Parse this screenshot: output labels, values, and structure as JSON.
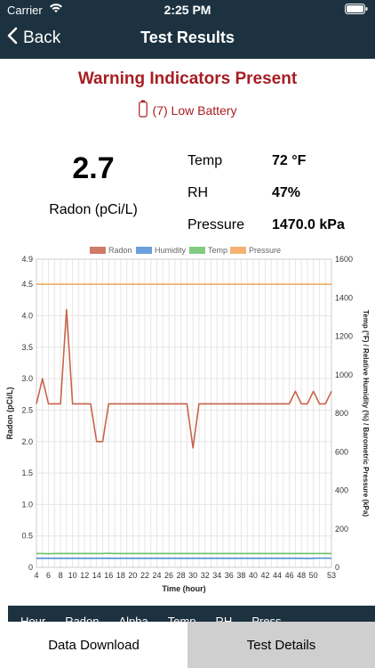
{
  "status": {
    "carrier": "Carrier",
    "time": "2:25 PM"
  },
  "nav": {
    "back_label": "Back",
    "title": "Test Results"
  },
  "warning": {
    "title": "Warning Indicators Present",
    "item": "(7) Low Battery"
  },
  "radon": {
    "value": "2.7",
    "label": "Radon (pCi/L)"
  },
  "metrics": [
    {
      "label": "Temp",
      "value": "72 °F"
    },
    {
      "label": "RH",
      "value": "47%"
    },
    {
      "label": "Pressure",
      "value": "1470.0 kPa"
    }
  ],
  "table_headers": [
    "Hour",
    "Radon",
    "Alpha",
    "Temp",
    "RH",
    "Press"
  ],
  "tabs": {
    "data_download": "Data Download",
    "test_details": "Test Details"
  },
  "colors": {
    "radon": "#c8644b",
    "humidity": "#4e91d6",
    "temp": "#6cc26b",
    "pressure": "#f2a65a",
    "nav": "#1d3240",
    "warning": "#a61e23"
  },
  "chart_data": {
    "type": "line",
    "xlabel": "Time (hour)",
    "ylabel": "Radon (pCi/L)",
    "y2label": "Temp (°F) / Relative Humidity (%) / Barometric Pressure (kPa)",
    "xlim": [
      4,
      53
    ],
    "ylim": [
      0,
      4.9
    ],
    "y2lim": [
      0,
      1600
    ],
    "x_ticks": [
      4,
      6,
      8,
      10,
      12,
      14,
      16,
      18,
      20,
      22,
      24,
      26,
      28,
      30,
      32,
      34,
      36,
      38,
      40,
      42,
      44,
      46,
      48,
      50,
      53
    ],
    "y_ticks": [
      0,
      0.5,
      1.0,
      1.5,
      2.0,
      2.5,
      3.0,
      3.5,
      4.0,
      4.5,
      4.9
    ],
    "y2_ticks": [
      0,
      200,
      400,
      600,
      800,
      1000,
      1200,
      1400,
      1600
    ],
    "legend": [
      "Radon",
      "Humidity",
      "Temp",
      "Pressure"
    ],
    "legend_position": "top",
    "grid": true,
    "x": [
      4,
      5,
      6,
      7,
      8,
      9,
      10,
      11,
      12,
      13,
      14,
      15,
      16,
      17,
      18,
      19,
      20,
      21,
      22,
      23,
      24,
      25,
      26,
      27,
      28,
      29,
      30,
      31,
      32,
      33,
      34,
      35,
      36,
      37,
      38,
      39,
      40,
      41,
      42,
      43,
      44,
      45,
      46,
      47,
      48,
      49,
      50,
      51,
      52,
      53
    ],
    "series": [
      {
        "name": "Radon",
        "axis": "left",
        "values": [
          2.6,
          3.0,
          2.6,
          2.6,
          2.6,
          4.1,
          2.6,
          2.6,
          2.6,
          2.6,
          2.0,
          2.0,
          2.6,
          2.6,
          2.6,
          2.6,
          2.6,
          2.6,
          2.6,
          2.6,
          2.6,
          2.6,
          2.6,
          2.6,
          2.6,
          2.6,
          1.9,
          2.6,
          2.6,
          2.6,
          2.6,
          2.6,
          2.6,
          2.6,
          2.6,
          2.6,
          2.6,
          2.6,
          2.6,
          2.6,
          2.6,
          2.6,
          2.6,
          2.8,
          2.6,
          2.6,
          2.8,
          2.6,
          2.6,
          2.8
        ]
      },
      {
        "name": "Humidity",
        "axis": "right",
        "values": [
          47,
          47,
          47,
          47,
          47,
          47,
          47,
          47,
          47,
          47,
          47,
          47,
          47,
          47,
          47,
          47,
          47,
          47,
          47,
          47,
          47,
          47,
          47,
          47,
          47,
          47,
          47,
          47,
          47,
          47,
          47,
          47,
          47,
          47,
          47,
          47,
          47,
          47,
          47,
          47,
          47,
          47,
          47,
          47,
          47,
          46,
          47,
          48,
          48,
          47
        ]
      },
      {
        "name": "Temp",
        "axis": "right",
        "values": [
          72,
          72,
          71,
          72,
          72,
          72,
          72,
          72,
          72,
          72,
          72,
          72,
          73,
          72,
          72,
          72,
          72,
          72,
          72,
          72,
          72,
          72,
          72,
          72,
          72,
          72,
          72,
          72,
          72,
          72,
          72,
          72,
          72,
          72,
          72,
          72,
          72,
          72,
          72,
          72,
          72,
          72,
          72,
          72,
          72,
          72,
          72,
          72,
          72,
          72
        ]
      },
      {
        "name": "Pressure",
        "axis": "right",
        "values": [
          1470,
          1470,
          1470,
          1470,
          1470,
          1470,
          1470,
          1470,
          1470,
          1470,
          1470,
          1470,
          1470,
          1470,
          1470,
          1470,
          1470,
          1470,
          1470,
          1470,
          1470,
          1470,
          1470,
          1470,
          1470,
          1470,
          1470,
          1470,
          1470,
          1470,
          1470,
          1470,
          1470,
          1470,
          1470,
          1470,
          1470,
          1470,
          1470,
          1470,
          1470,
          1470,
          1470,
          1470,
          1470,
          1470,
          1470,
          1470,
          1470,
          1470
        ]
      }
    ]
  }
}
